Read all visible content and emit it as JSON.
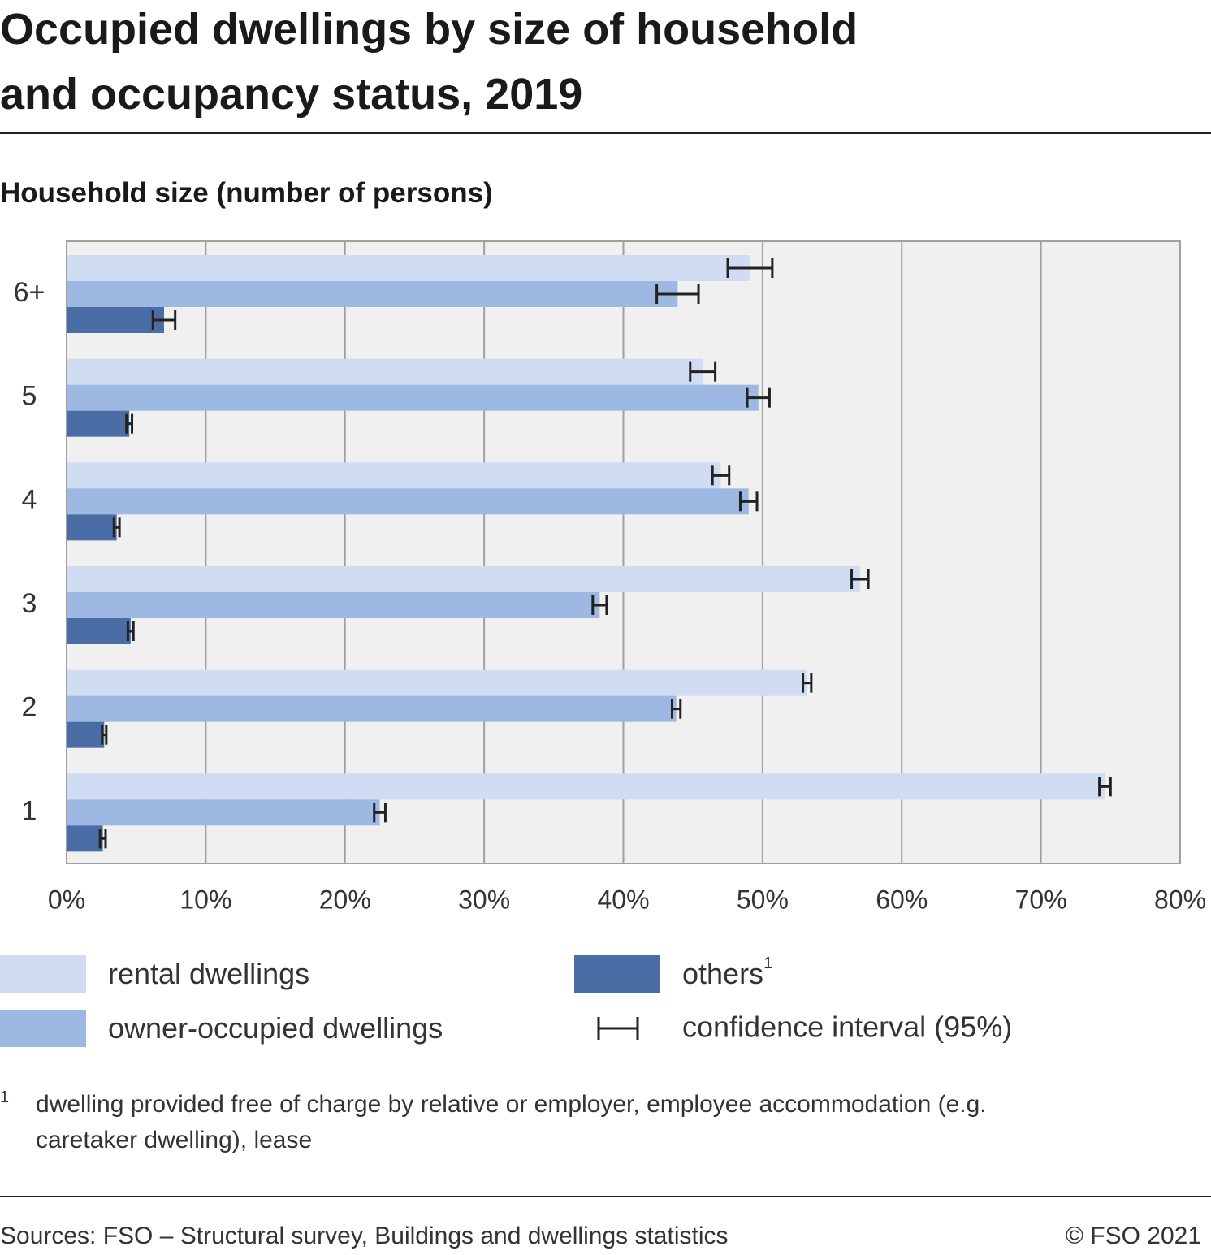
{
  "chart_data": {
    "type": "bar",
    "title": "Occupied dwellings by size of household and occupancy status, 2019",
    "y_label": "Household size (number of persons)",
    "categories": [
      "1",
      "2",
      "3",
      "4",
      "5",
      "6+"
    ],
    "series": [
      {
        "name": "rental dwellings",
        "color": "#d0dcf2",
        "values": [
          74.6,
          53.2,
          57.0,
          47.0,
          45.7,
          49.1
        ],
        "errors": [
          0.4,
          0.3,
          0.6,
          0.6,
          0.9,
          1.6
        ]
      },
      {
        "name": "owner-occupied dwellings",
        "color": "#9db8e2",
        "values": [
          22.5,
          43.8,
          38.3,
          49.0,
          49.7,
          43.9
        ],
        "errors": [
          0.4,
          0.3,
          0.5,
          0.6,
          0.8,
          1.5
        ]
      },
      {
        "name": "others",
        "name_note": "1",
        "color": "#4a6da5",
        "values": [
          2.6,
          2.7,
          4.6,
          3.6,
          4.5,
          7.0
        ],
        "errors": [
          0.2,
          0.15,
          0.2,
          0.2,
          0.2,
          0.8
        ]
      }
    ],
    "error_label": "confidence interval (95%)",
    "xlim": [
      0,
      80
    ],
    "xticks": [
      {
        "value": 0,
        "label": "0%"
      },
      {
        "value": 10,
        "label": "10%"
      },
      {
        "value": 20,
        "label": "20%"
      },
      {
        "value": 30,
        "label": "30%"
      },
      {
        "value": 40,
        "label": "40%"
      },
      {
        "value": 50,
        "label": "50%"
      },
      {
        "value": 60,
        "label": "60%"
      },
      {
        "value": 70,
        "label": "70%"
      },
      {
        "value": 80,
        "label": "80%"
      }
    ],
    "grid": true,
    "footnote": {
      "marker": "1",
      "text": "dwelling provided free of charge by relative or employer, employee accommodation (e.g. caretaker dwelling), lease"
    },
    "source": "Sources: FSO – Structural survey, Buildings and dwellings statistics",
    "copyright": "© FSO 2021"
  }
}
